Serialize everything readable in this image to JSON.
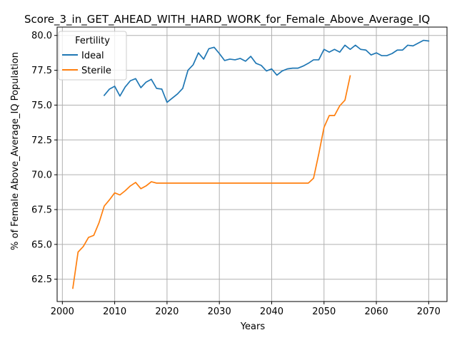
{
  "chart_data": {
    "type": "line",
    "title": "Score_3_in_GET_AHEAD_WITH_HARD_WORK_for_Female_Above_Average_IQ",
    "xlabel": "Years",
    "ylabel": "% of Female Above_Average_IQ Population",
    "xlim": [
      1999,
      2073.5
    ],
    "ylim": [
      60.9,
      80.6
    ],
    "xticks": [
      2000,
      2010,
      2020,
      2030,
      2040,
      2050,
      2060,
      2070
    ],
    "yticks": [
      62.5,
      65.0,
      67.5,
      70.0,
      72.5,
      75.0,
      77.5,
      80.0
    ],
    "xtick_labels": [
      "2000",
      "2010",
      "2020",
      "2030",
      "2040",
      "2050",
      "2060",
      "2070"
    ],
    "ytick_labels": [
      "62.5",
      "65.0",
      "67.5",
      "70.0",
      "72.5",
      "75.0",
      "77.5",
      "80.0"
    ],
    "grid": true,
    "legend": {
      "title": "Fertility",
      "placement": "upper-left"
    },
    "series": [
      {
        "name": "Ideal",
        "color": "#1f77b4",
        "x": [
          2008,
          2009,
          2010,
          2011,
          2012,
          2013,
          2014,
          2015,
          2016,
          2017,
          2018,
          2019,
          2020,
          2021,
          2022,
          2023,
          2024,
          2025,
          2026,
          2027,
          2028,
          2029,
          2030,
          2031,
          2032,
          2033,
          2034,
          2035,
          2036,
          2037,
          2038,
          2039,
          2040,
          2041,
          2042,
          2043,
          2044,
          2045,
          2046,
          2047,
          2048,
          2049,
          2050,
          2051,
          2052,
          2053,
          2054,
          2055,
          2056,
          2057,
          2058,
          2059,
          2060,
          2061,
          2062,
          2063,
          2064,
          2065,
          2066,
          2067,
          2068,
          2069,
          2070
        ],
        "values": [
          75.7,
          76.15,
          76.35,
          75.65,
          76.3,
          76.75,
          76.9,
          76.25,
          76.65,
          76.85,
          76.2,
          76.15,
          75.2,
          75.5,
          75.8,
          76.2,
          77.5,
          77.9,
          78.75,
          78.3,
          79.05,
          79.15,
          78.7,
          78.2,
          78.3,
          78.25,
          78.35,
          78.15,
          78.5,
          78.0,
          77.85,
          77.45,
          77.6,
          77.15,
          77.45,
          77.6,
          77.65,
          77.65,
          77.8,
          78.0,
          78.25,
          78.25,
          79.0,
          78.8,
          79.0,
          78.8,
          79.3,
          79.0,
          79.3,
          79.0,
          78.95,
          78.6,
          78.75,
          78.55,
          78.55,
          78.7,
          78.95,
          78.95,
          79.3,
          79.25,
          79.45,
          79.65,
          79.6
        ]
      },
      {
        "name": "Sterile",
        "color": "#ff7f0e",
        "x": [
          2002,
          2003,
          2004,
          2005,
          2006,
          2007,
          2008,
          2009,
          2010,
          2011,
          2012,
          2013,
          2014,
          2015,
          2016,
          2017,
          2018,
          2019,
          2020,
          2021,
          2022,
          2023,
          2024,
          2025,
          2026,
          2027,
          2028,
          2029,
          2030,
          2031,
          2032,
          2033,
          2034,
          2035,
          2036,
          2037,
          2038,
          2039,
          2040,
          2041,
          2042,
          2043,
          2044,
          2045,
          2046,
          2047,
          2048,
          2049,
          2050,
          2051,
          2052,
          2053,
          2054,
          2055
        ],
        "values": [
          61.85,
          64.45,
          64.85,
          65.5,
          65.65,
          66.55,
          67.75,
          68.2,
          68.7,
          68.55,
          68.85,
          69.2,
          69.45,
          69.0,
          69.2,
          69.5,
          69.4,
          69.4,
          69.4,
          69.4,
          69.4,
          69.4,
          69.4,
          69.4,
          69.4,
          69.4,
          69.4,
          69.4,
          69.4,
          69.4,
          69.4,
          69.4,
          69.4,
          69.4,
          69.4,
          69.4,
          69.4,
          69.4,
          69.4,
          69.4,
          69.4,
          69.4,
          69.4,
          69.4,
          69.4,
          69.4,
          69.75,
          71.5,
          73.4,
          74.25,
          74.25,
          74.95,
          75.35,
          77.1
        ]
      }
    ]
  }
}
